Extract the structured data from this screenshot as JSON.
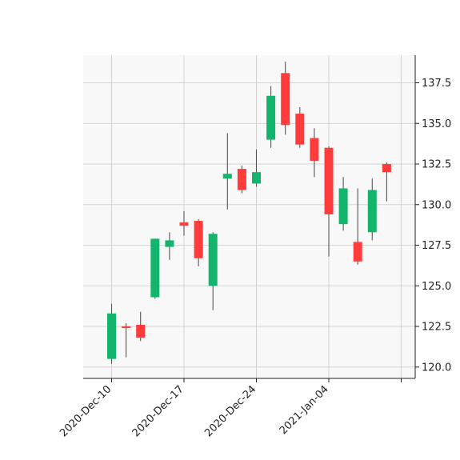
{
  "chart_data": {
    "type": "candlestick",
    "title": "",
    "xlabel": "",
    "ylabel": "",
    "ylim": [
      119.3,
      139.2
    ],
    "y_ticks": [
      120.0,
      122.5,
      125.0,
      127.5,
      130.0,
      132.5,
      135.0,
      137.5
    ],
    "y_tick_labels": [
      "120.0",
      "122.5",
      "125.0",
      "127.5",
      "130.0",
      "132.5",
      "135.0",
      "137.5"
    ],
    "x_tick_labels": [
      "2020-Dec-10",
      "2020-Dec-17",
      "2020-Dec-24",
      "2021-Jan-04"
    ],
    "x_tick_index": [
      0,
      5,
      10,
      15
    ],
    "grid": true,
    "up_color": "#12b56b",
    "down_color": "#ff3b3b",
    "background_color": "#f8f8f8",
    "candles": [
      {
        "open": 120.5,
        "high": 123.9,
        "low": 120.2,
        "close": 123.3
      },
      {
        "open": 122.5,
        "high": 122.7,
        "low": 120.6,
        "close": 122.4
      },
      {
        "open": 122.6,
        "high": 123.4,
        "low": 121.6,
        "close": 121.8
      },
      {
        "open": 124.3,
        "high": 127.9,
        "low": 124.2,
        "close": 127.9
      },
      {
        "open": 127.4,
        "high": 128.3,
        "low": 126.6,
        "close": 127.8
      },
      {
        "open": 128.9,
        "high": 129.6,
        "low": 128.1,
        "close": 128.7
      },
      {
        "open": 129.0,
        "high": 129.1,
        "low": 126.2,
        "close": 126.7
      },
      {
        "open": 125.0,
        "high": 128.3,
        "low": 123.5,
        "close": 128.2
      },
      {
        "open": 131.6,
        "high": 134.4,
        "low": 129.7,
        "close": 131.9
      },
      {
        "open": 132.2,
        "high": 132.4,
        "low": 130.7,
        "close": 130.9
      },
      {
        "open": 131.3,
        "high": 133.4,
        "low": 131.1,
        "close": 132.0
      },
      {
        "open": 134.0,
        "high": 137.3,
        "low": 133.5,
        "close": 136.7
      },
      {
        "open": 138.1,
        "high": 138.8,
        "low": 134.3,
        "close": 134.9
      },
      {
        "open": 135.6,
        "high": 136.0,
        "low": 133.5,
        "close": 133.7
      },
      {
        "open": 134.1,
        "high": 134.7,
        "low": 131.7,
        "close": 132.7
      },
      {
        "open": 133.5,
        "high": 133.6,
        "low": 126.8,
        "close": 129.4
      },
      {
        "open": 128.8,
        "high": 131.7,
        "low": 128.4,
        "close": 131.0
      },
      {
        "open": 127.7,
        "high": 131.0,
        "low": 126.3,
        "close": 126.5
      },
      {
        "open": 128.3,
        "high": 131.6,
        "low": 127.8,
        "close": 130.9
      },
      {
        "open": 132.5,
        "high": 132.6,
        "low": 130.2,
        "close": 132.0
      }
    ]
  }
}
